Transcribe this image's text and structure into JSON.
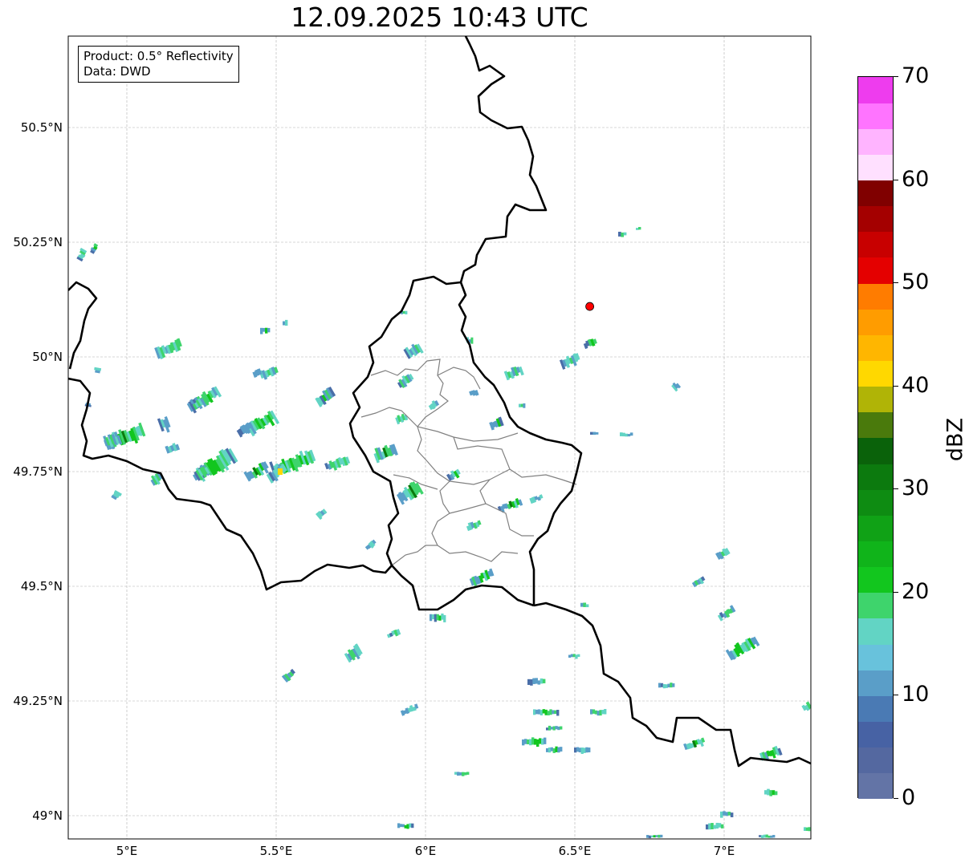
{
  "title": "12.09.2025 10:43 UTC",
  "info": {
    "product": "Product: 0.5° Reflectivity",
    "source": "Data: DWD"
  },
  "map": {
    "lon_range": [
      4.8,
      7.3
    ],
    "lat_range": [
      48.95,
      50.7
    ],
    "lon_ticks": [
      {
        "v": 5.0,
        "label": "5°E"
      },
      {
        "v": 5.5,
        "label": "5.5°E"
      },
      {
        "v": 6.0,
        "label": "6°E"
      },
      {
        "v": 6.5,
        "label": "6.5°E"
      },
      {
        "v": 7.0,
        "label": "7°E"
      }
    ],
    "lat_ticks": [
      {
        "v": 49.0,
        "label": "49°N"
      },
      {
        "v": 49.25,
        "label": "49.25°N"
      },
      {
        "v": 49.5,
        "label": "49.5°N"
      },
      {
        "v": 49.75,
        "label": "49.75°N"
      },
      {
        "v": 50.0,
        "label": "50°N"
      },
      {
        "v": 50.25,
        "label": "50.25°N"
      },
      {
        "v": 50.5,
        "label": "50.5°N"
      }
    ],
    "marker": {
      "lon": 6.55,
      "lat": 50.11,
      "color": "#ff0000"
    }
  },
  "colorbar": {
    "unit": "dBZ",
    "min": 0,
    "max": 70,
    "tick_labels": [
      {
        "v": 0,
        "label": "0"
      },
      {
        "v": 10,
        "label": "10"
      },
      {
        "v": 20,
        "label": "20"
      },
      {
        "v": 30,
        "label": "30"
      },
      {
        "v": 40,
        "label": "40"
      },
      {
        "v": 50,
        "label": "50"
      },
      {
        "v": 60,
        "label": "60"
      },
      {
        "v": 70,
        "label": "70"
      }
    ],
    "colors": [
      "#6374a6",
      "#5468a0",
      "#4762a4",
      "#4a7ab4",
      "#5a9ec8",
      "#68c2dc",
      "#62d4c4",
      "#3ed46c",
      "#12c61e",
      "#10b41a",
      "#10a216",
      "#0e8c12",
      "#0c7a0e",
      "#0a620a",
      "#4a7a0c",
      "#b0b406",
      "#ffd800",
      "#ffb600",
      "#ff9c00",
      "#ff7c00",
      "#e40000",
      "#c80000",
      "#a40000",
      "#800000",
      "#ffe0ff",
      "#ffb4ff",
      "#ff74ff",
      "#ee3cee"
    ]
  },
  "echo_colors": [
    "#4a6ea8",
    "#5a9ec8",
    "#62d4c4",
    "#3ed46c",
    "#12c61e",
    "#0c7a0e"
  ]
}
